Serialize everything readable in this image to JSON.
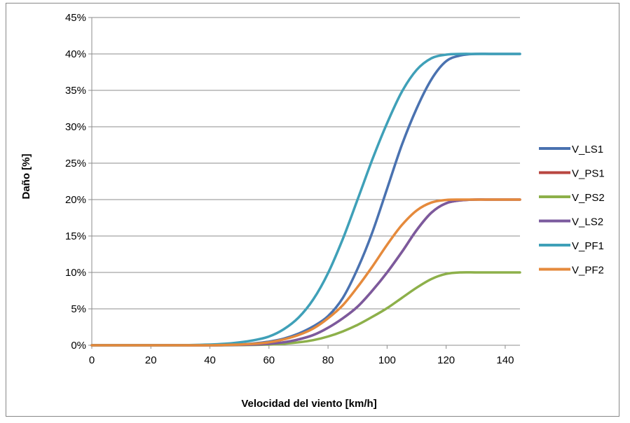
{
  "chart_data": {
    "type": "line",
    "xlabel": "Velocidad del viento [km/h]",
    "ylabel": "Daño [%]",
    "xlim": [
      0,
      145
    ],
    "ylim": [
      0,
      45
    ],
    "x_ticks": [
      0,
      20,
      40,
      60,
      80,
      100,
      120,
      140
    ],
    "y_ticks": [
      0,
      5,
      10,
      15,
      20,
      25,
      30,
      35,
      40,
      45
    ],
    "y_tick_suffix": "%",
    "grid": "horizontal",
    "legend_position": "right",
    "x": [
      0,
      10,
      20,
      30,
      40,
      45,
      50,
      55,
      60,
      65,
      70,
      75,
      80,
      85,
      90,
      95,
      100,
      105,
      110,
      115,
      120,
      125,
      130,
      135,
      140,
      145
    ],
    "series": [
      {
        "name": "V_LS1",
        "color": "#4a72b0",
        "values": [
          0,
          0,
          0,
          0,
          0,
          0.05,
          0.1,
          0.25,
          0.5,
          0.9,
          1.6,
          2.6,
          4.0,
          6.5,
          10.5,
          15.5,
          21.5,
          27.5,
          32.5,
          36.5,
          39.0,
          39.8,
          40,
          40,
          40,
          40
        ]
      },
      {
        "name": "V_PS1",
        "color": "#b84640",
        "values": [
          0,
          0,
          0,
          0,
          0,
          0.02,
          0.05,
          0.1,
          0.2,
          0.4,
          0.8,
          1.4,
          2.4,
          3.7,
          5.3,
          7.5,
          10.0,
          12.8,
          15.8,
          18.2,
          19.5,
          19.9,
          20,
          20,
          20,
          20
        ]
      },
      {
        "name": "V_PS2",
        "color": "#8db04a",
        "values": [
          0,
          0,
          0,
          0,
          0,
          0,
          0.02,
          0.05,
          0.1,
          0.2,
          0.4,
          0.7,
          1.2,
          1.9,
          2.8,
          3.9,
          5.1,
          6.5,
          7.9,
          9.1,
          9.8,
          10,
          10,
          10,
          10,
          10
        ]
      },
      {
        "name": "V_LS2",
        "color": "#7b5a9e",
        "values": [
          0,
          0,
          0,
          0,
          0,
          0.02,
          0.05,
          0.1,
          0.2,
          0.4,
          0.8,
          1.4,
          2.4,
          3.7,
          5.3,
          7.5,
          10.0,
          12.8,
          15.8,
          18.2,
          19.5,
          19.9,
          20,
          20,
          20,
          20
        ]
      },
      {
        "name": "V_PF1",
        "color": "#3fa0b8",
        "values": [
          0,
          0,
          0,
          0,
          0.1,
          0.2,
          0.4,
          0.7,
          1.2,
          2.2,
          3.8,
          6.3,
          9.9,
          14.6,
          20.0,
          25.5,
          30.5,
          34.8,
          37.8,
          39.4,
          39.9,
          40,
          40,
          40,
          40,
          40
        ]
      },
      {
        "name": "V_PF2",
        "color": "#e58a3c",
        "values": [
          0,
          0,
          0,
          0,
          0,
          0.05,
          0.1,
          0.2,
          0.4,
          0.8,
          1.4,
          2.3,
          3.7,
          5.5,
          8.0,
          10.8,
          13.8,
          16.5,
          18.5,
          19.6,
          19.95,
          20,
          20,
          20,
          20,
          20
        ]
      }
    ]
  }
}
